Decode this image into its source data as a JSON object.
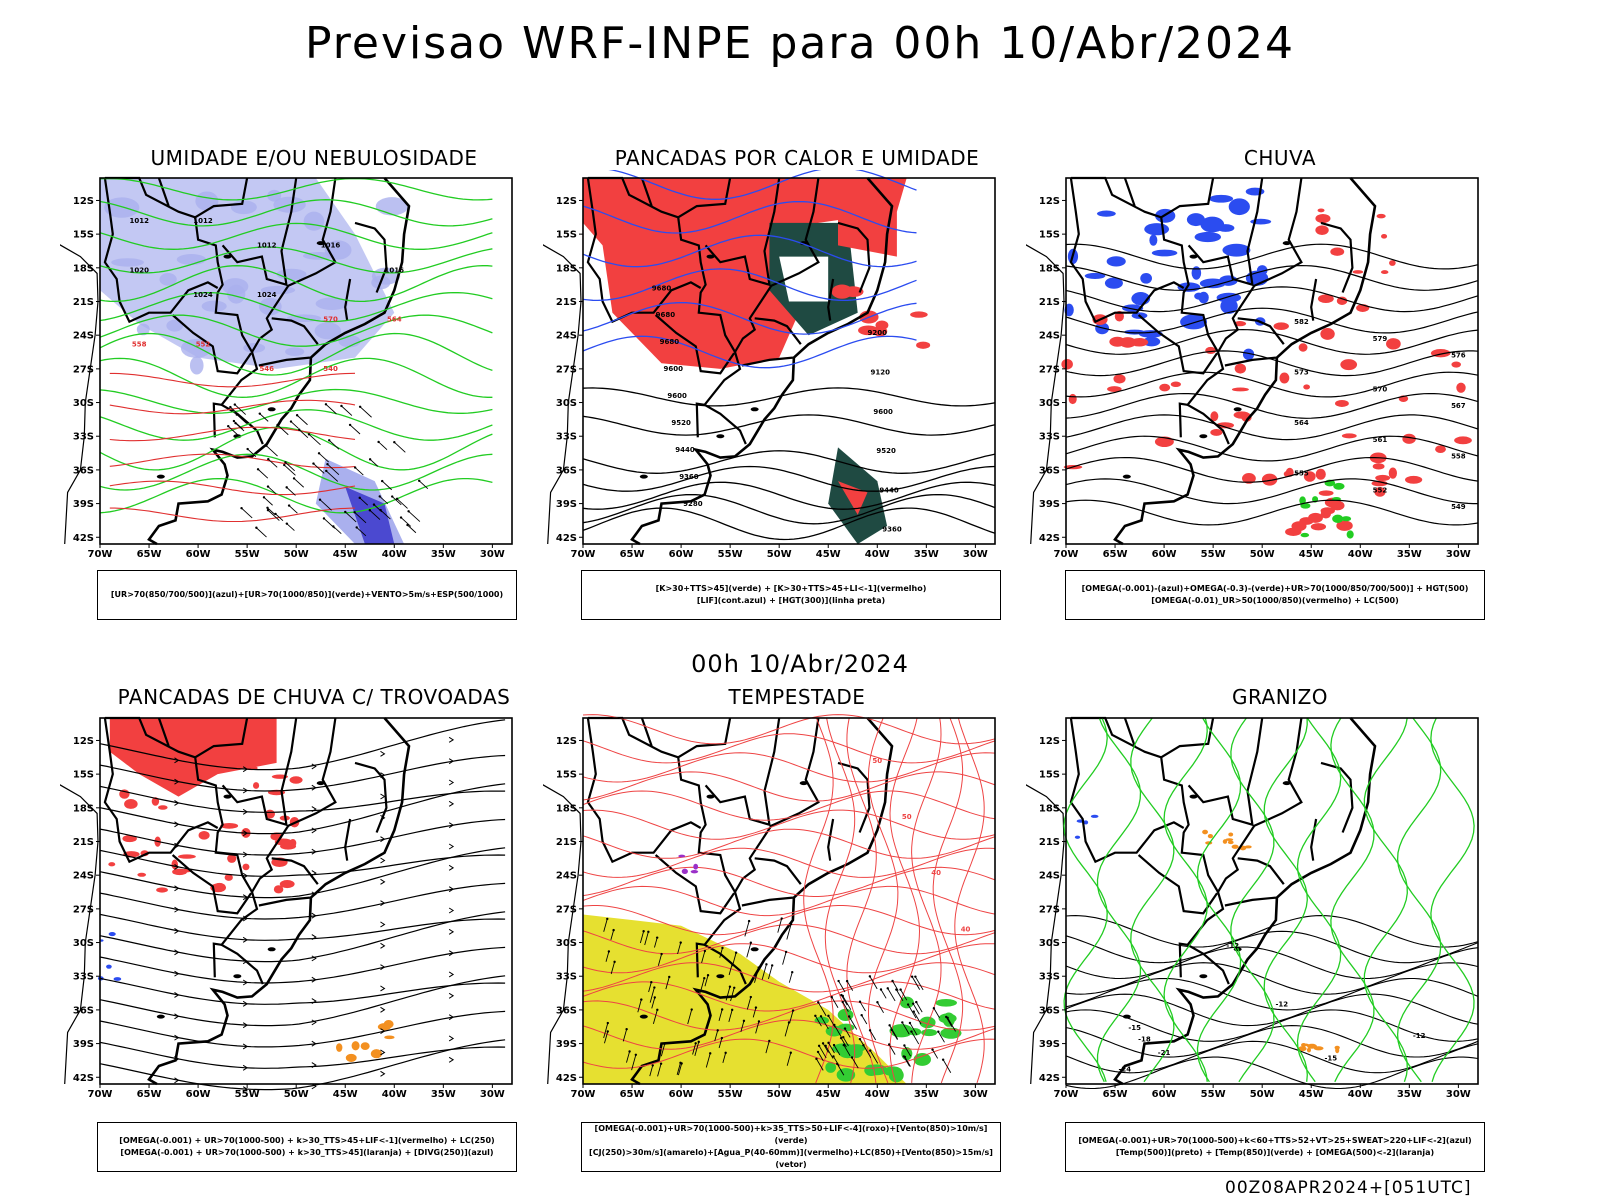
{
  "title": "Previsao WRF-INPE  para 00h 10/Abr/2024",
  "mid_time": "00h 10/Abr/2024",
  "run_stamp": "00Z08APR2024+[051UTC]",
  "lat_ticks": [
    "12S",
    "15S",
    "18S",
    "21S",
    "24S",
    "27S",
    "30S",
    "33S",
    "36S",
    "39S",
    "42S"
  ],
  "lon_ticks": [
    "70W",
    "65W",
    "60W",
    "55W",
    "50W",
    "45W",
    "40W",
    "35W",
    "30W"
  ],
  "colors": {
    "blue_fill": "#aab0ee",
    "green_contour": "#22cc22",
    "red_fill": "#f24040",
    "dark_teal": "#1f4a42",
    "blue_contour": "#2b4cf0",
    "yellow_fill": "#e6e030",
    "orange_fill": "#f39020",
    "purple": "#9a30c8"
  },
  "panels": [
    {
      "title": "UMIDADE E/OU NEBULOSIDADE",
      "legend": [
        "[UR>70(850/700/500)](azul)+[UR>70(1000/850)](verde)+VENTO>5m/s+ESP(500/1000)"
      ],
      "labels": [
        "1012",
        "1012",
        "1012",
        "1016",
        "1016",
        "1020",
        "1024",
        "1024",
        "570",
        "564",
        "558",
        "552",
        "546",
        "540"
      ]
    },
    {
      "title": "PANCADAS POR CALOR E UMIDADE",
      "legend": [
        "[K>30+TTS>45](verde) + [K>30+TTS>45+LI<-1](vermelho)",
        "[LIF](cont.azul) + [HGT(300)](linha preta)"
      ],
      "labels": [
        "9680",
        "9680",
        "9680",
        "9600",
        "9600",
        "9520",
        "9440",
        "9360",
        "9280",
        "9200",
        "9120",
        "9600",
        "9520",
        "9440",
        "9360"
      ]
    },
    {
      "title": "CHUVA",
      "legend": [
        "[OMEGA(-0.001)-(azul)+OMEGA(-0.3)-(verde)+UR>70(1000/850/700/500)] + HGT(500)",
        "[OMEGA(-0.01)_UR>50(1000/850)(vermelho) + LC(500)"
      ],
      "labels": [
        "582",
        "579",
        "576",
        "573",
        "570",
        "567",
        "564",
        "561",
        "558",
        "555",
        "552",
        "549"
      ]
    },
    {
      "title": "PANCADAS DE CHUVA C/ TROVOADAS",
      "legend": [
        "[OMEGA(-0.001) + UR>70(1000-500) + k>30_TTS>45+LIF<-1](vermelho) + LC(250)",
        "[OMEGA(-0.001) + UR>70(1000-500) + k>30_TTS>45](laranja) + [DIVG(250)](azul)"
      ],
      "labels": []
    },
    {
      "title": "TEMPESTADE",
      "legend": [
        "[OMEGA(-0.001)+UR>70(1000-500)+k>35_TTS>50+LIF<-4](roxo)+[Vento(850)>10m/s](verde)",
        "[CJ(250)>30m/s](amarelo)+[Agua_P(40-60mm)](vermelho)+LC(850)+[Vento(850)>15m/s](vetor)"
      ],
      "labels": [
        "50",
        "50",
        "40",
        "40"
      ]
    },
    {
      "title": "GRANIZO",
      "legend": [
        "[OMEGA(-0.001)+UR>70(1000-500)+k<60+TTS>52+VT>25+SWEAT>220+LIF<-2](azul)",
        "[Temp(500)](preto) + [Temp(850)](verde) + [OMEGA(500)<-2](laranja)"
      ],
      "labels": [
        "-12",
        "-12",
        "-15",
        "-18",
        "-21",
        "-24",
        "-12",
        "-15"
      ]
    }
  ]
}
